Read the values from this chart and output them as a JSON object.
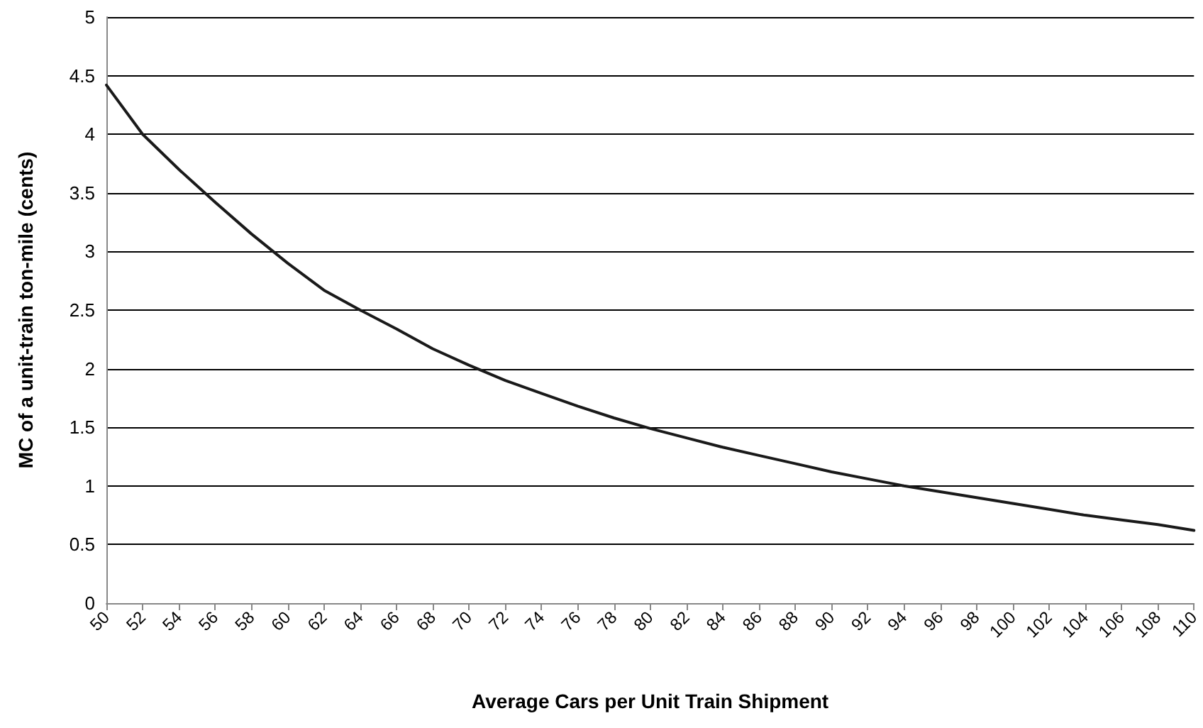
{
  "chart_data": {
    "type": "line",
    "xlabel": "Average Cars per Unit Train Shipment",
    "ylabel": "MC of a unit-train ton-mile (cents)",
    "x": [
      50,
      52,
      54,
      56,
      58,
      60,
      62,
      64,
      66,
      68,
      70,
      72,
      74,
      76,
      78,
      80,
      82,
      84,
      86,
      88,
      90,
      92,
      94,
      96,
      98,
      100,
      102,
      104,
      106,
      108,
      110
    ],
    "series": [
      {
        "color": "#1a1a1a",
        "values": [
          4.42,
          4.0,
          3.7,
          3.42,
          3.15,
          2.9,
          2.67,
          2.5,
          2.34,
          2.17,
          2.03,
          1.9,
          1.79,
          1.68,
          1.58,
          1.49,
          1.41,
          1.33,
          1.26,
          1.19,
          1.12,
          1.06,
          1.0,
          0.95,
          0.9,
          0.85,
          0.8,
          0.75,
          0.71,
          0.67,
          0.62
        ]
      }
    ],
    "xlim": [
      50,
      110
    ],
    "xticks": [
      50,
      52,
      54,
      56,
      58,
      60,
      62,
      64,
      66,
      68,
      70,
      72,
      74,
      76,
      78,
      80,
      82,
      84,
      86,
      88,
      90,
      92,
      94,
      96,
      98,
      100,
      102,
      104,
      106,
      108,
      110
    ],
    "ylim": [
      0,
      5
    ],
    "yticks": [
      0,
      0.5,
      1,
      1.5,
      2,
      2.5,
      3,
      3.5,
      4,
      4.5,
      5
    ],
    "grid": "y",
    "marker": "none",
    "line_style": "solid"
  }
}
